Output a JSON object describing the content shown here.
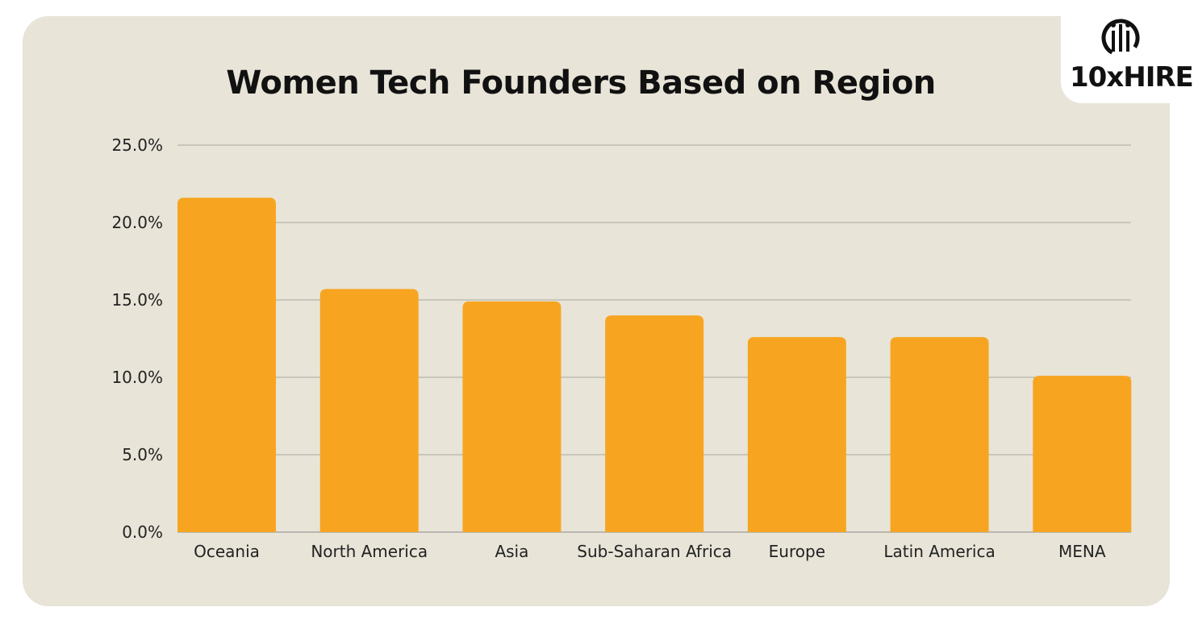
{
  "brand": {
    "logo_text": "10xHIRE",
    "bar_color": "#f7a520",
    "background": "#e8e4d8",
    "grid_color": "#a8a8a0"
  },
  "chart_data": {
    "type": "bar",
    "title": "Women Tech Founders Based on Region",
    "xlabel": "",
    "ylabel": "",
    "categories": [
      "Oceania",
      "North America",
      "Asia",
      "Sub-Saharan Africa",
      "Europe",
      "Latin America",
      "MENA"
    ],
    "values": [
      21.6,
      15.7,
      14.9,
      14.0,
      12.6,
      12.6,
      10.1
    ],
    "ylim": [
      0,
      25
    ],
    "yticks": [
      "0.0%",
      "5.0%",
      "10.0%",
      "15.0%",
      "20.0%",
      "25.0%"
    ],
    "grid": true,
    "legend": "none"
  }
}
